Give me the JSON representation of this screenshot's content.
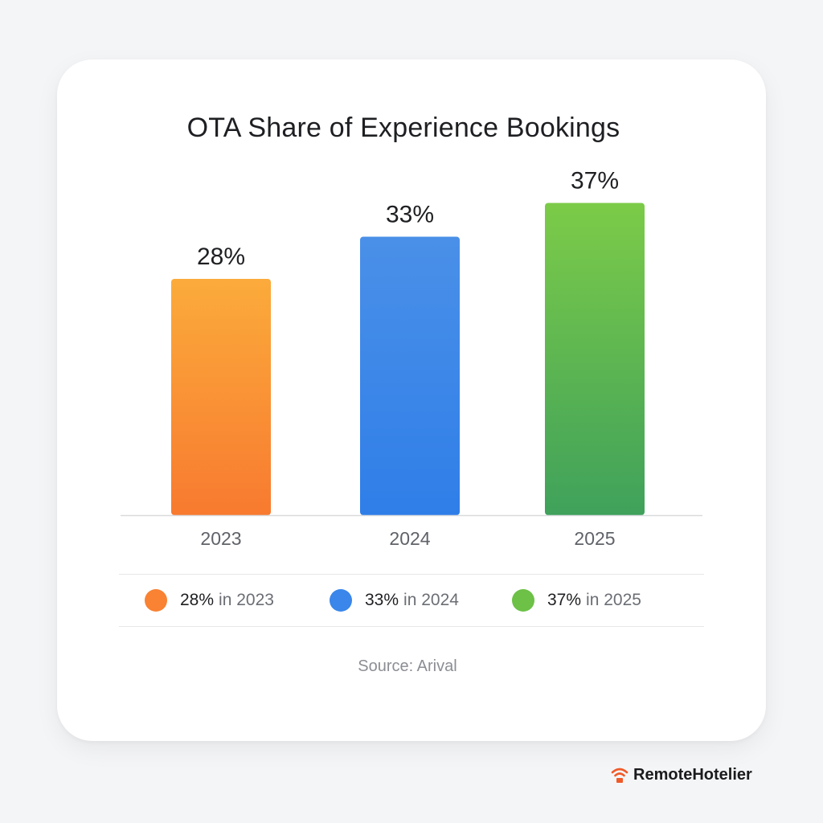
{
  "chart_data": {
    "type": "bar",
    "title": "OTA Share of Experience Bookings",
    "categories": [
      "2023",
      "2024",
      "2025"
    ],
    "values": [
      28,
      33,
      37
    ],
    "value_labels": [
      "28%",
      "33%",
      "37%"
    ],
    "value_suffix": "%",
    "ylim": [
      0,
      42
    ],
    "grid": false,
    "legend_position": "bottom",
    "colors": [
      {
        "top": "#fbab3b",
        "bottom": "#f87a30"
      },
      {
        "top": "#4a90e8",
        "bottom": "#2f7ee8"
      },
      {
        "top": "#7ccb48",
        "bottom": "#3fa15b"
      }
    ]
  },
  "legend": {
    "items": [
      {
        "value": "28%",
        "text": "in 2023",
        "color": "#f98233"
      },
      {
        "value": "33%",
        "text": "in 2024",
        "color": "#3a86ea"
      },
      {
        "value": "37%",
        "text": "in 2025",
        "color": "#6cc146"
      }
    ]
  },
  "source": "Source: Arival",
  "brand": {
    "name": "RemoteHotelier",
    "icon": "wifi-signal-icon",
    "icon_color": "#f05a28"
  }
}
